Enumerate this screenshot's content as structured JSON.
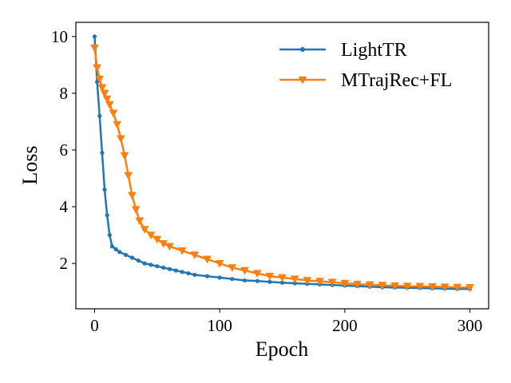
{
  "chart_data": {
    "type": "line",
    "xlabel": "Epoch",
    "ylabel": "Loss",
    "xlim": [
      -15,
      315
    ],
    "ylim": [
      0.4,
      10.5
    ],
    "xticks": [
      0,
      100,
      200,
      300
    ],
    "yticks": [
      2,
      4,
      6,
      8,
      10
    ],
    "legend_position": "top-right",
    "grid": false,
    "series": [
      {
        "name": "LightTR",
        "color": "#1f77b4",
        "marker": "circle",
        "x": [
          0,
          2,
          4,
          6,
          8,
          10,
          12,
          14,
          17,
          20,
          25,
          30,
          35,
          40,
          45,
          50,
          55,
          60,
          65,
          70,
          75,
          80,
          90,
          100,
          110,
          120,
          130,
          140,
          150,
          160,
          170,
          180,
          190,
          200,
          210,
          220,
          230,
          240,
          250,
          260,
          270,
          280,
          290,
          300
        ],
        "y": [
          10.0,
          8.4,
          7.2,
          5.9,
          4.6,
          3.7,
          3.0,
          2.6,
          2.5,
          2.4,
          2.3,
          2.2,
          2.1,
          2.0,
          1.95,
          1.9,
          1.85,
          1.8,
          1.75,
          1.7,
          1.65,
          1.6,
          1.55,
          1.5,
          1.45,
          1.4,
          1.38,
          1.35,
          1.32,
          1.3,
          1.28,
          1.26,
          1.24,
          1.22,
          1.2,
          1.18,
          1.16,
          1.15,
          1.14,
          1.13,
          1.12,
          1.11,
          1.1,
          1.1
        ]
      },
      {
        "name": "MTrajRec+FL",
        "color": "#ff7f0e",
        "marker": "triangle-down",
        "x": [
          0,
          2,
          4,
          6,
          8,
          10,
          12,
          15,
          18,
          21,
          24,
          27,
          30,
          33,
          36,
          40,
          45,
          50,
          55,
          60,
          70,
          80,
          90,
          100,
          110,
          120,
          130,
          140,
          150,
          160,
          170,
          180,
          190,
          200,
          210,
          220,
          230,
          240,
          250,
          260,
          270,
          280,
          290,
          300
        ],
        "y": [
          9.6,
          8.9,
          8.5,
          8.2,
          8.0,
          7.8,
          7.6,
          7.3,
          6.9,
          6.4,
          5.8,
          5.1,
          4.4,
          3.9,
          3.5,
          3.2,
          3.0,
          2.85,
          2.7,
          2.6,
          2.45,
          2.3,
          2.15,
          2.0,
          1.85,
          1.75,
          1.65,
          1.55,
          1.5,
          1.45,
          1.4,
          1.37,
          1.34,
          1.3,
          1.27,
          1.25,
          1.23,
          1.21,
          1.2,
          1.19,
          1.18,
          1.17,
          1.16,
          1.15
        ]
      }
    ]
  }
}
